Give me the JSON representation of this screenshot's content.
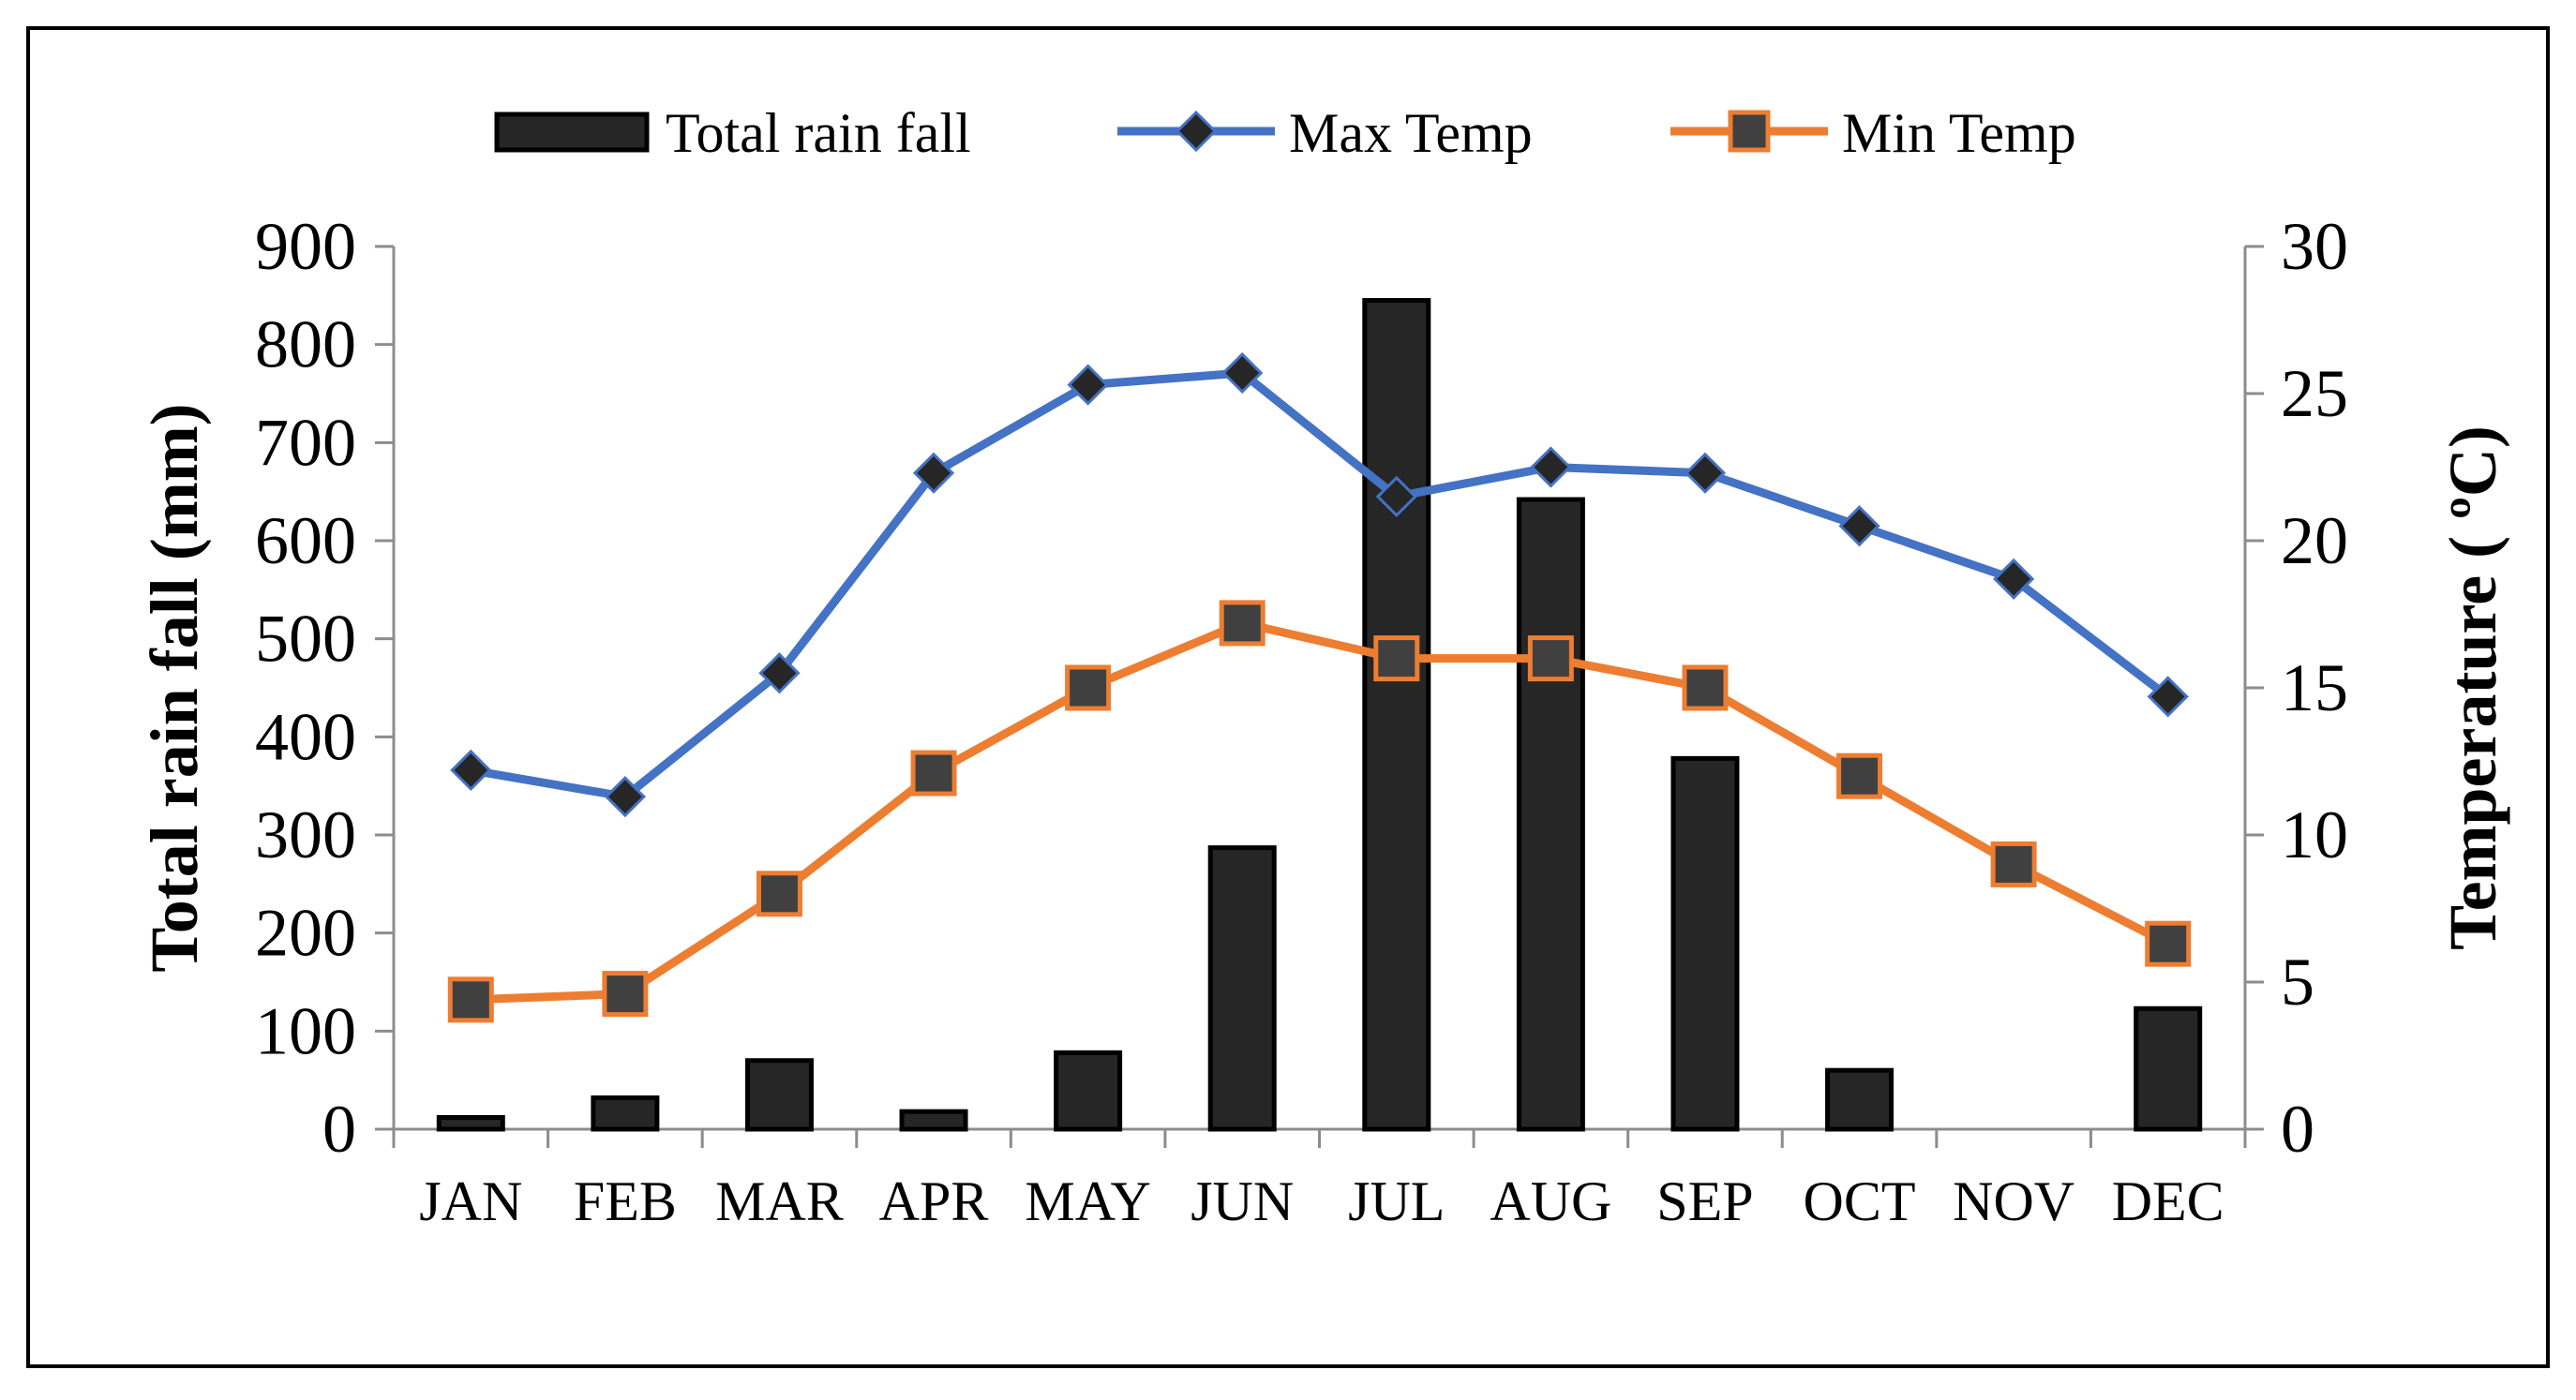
{
  "chart_data": {
    "type": "bar-line-combo",
    "categories": [
      "JAN",
      "FEB",
      "MAR",
      "APR",
      "MAY",
      "JUN",
      "JUL",
      "AUG",
      "SEP",
      "OCT",
      "NOV",
      "DEC"
    ],
    "series": [
      {
        "name": "Total rain fall",
        "kind": "bar",
        "axis": "left",
        "color": "#262626",
        "values": [
          12,
          32,
          70,
          18,
          78,
          287,
          845,
          642,
          378,
          60,
          0,
          123
        ]
      },
      {
        "name": "Max Temp",
        "kind": "line",
        "axis": "right",
        "color": "#4472C4",
        "marker": "diamond",
        "values": [
          12.2,
          11.3,
          15.5,
          22.3,
          25.3,
          25.7,
          21.5,
          22.5,
          22.3,
          20.5,
          18.7,
          14.7
        ]
      },
      {
        "name": "Min Temp",
        "kind": "line",
        "axis": "right",
        "color": "#ED7D31",
        "marker": "square",
        "values": [
          4.4,
          4.6,
          8.0,
          12.1,
          15.0,
          17.2,
          16.0,
          16.0,
          15.0,
          12.0,
          9.0,
          6.3
        ]
      }
    ],
    "y_left": {
      "label": "Total rain fall (mm)",
      "range": [
        0,
        900
      ],
      "ticks": [
        "0",
        "100",
        "200",
        "300",
        "400",
        "500",
        "600",
        "700",
        "800",
        "900"
      ]
    },
    "y_right": {
      "label": "Temperature ( ºC)",
      "range": [
        0,
        30
      ],
      "ticks": [
        "0",
        "5",
        "10",
        "15",
        "20",
        "25",
        "30"
      ]
    },
    "legend_position": "top-center",
    "grid": false
  }
}
